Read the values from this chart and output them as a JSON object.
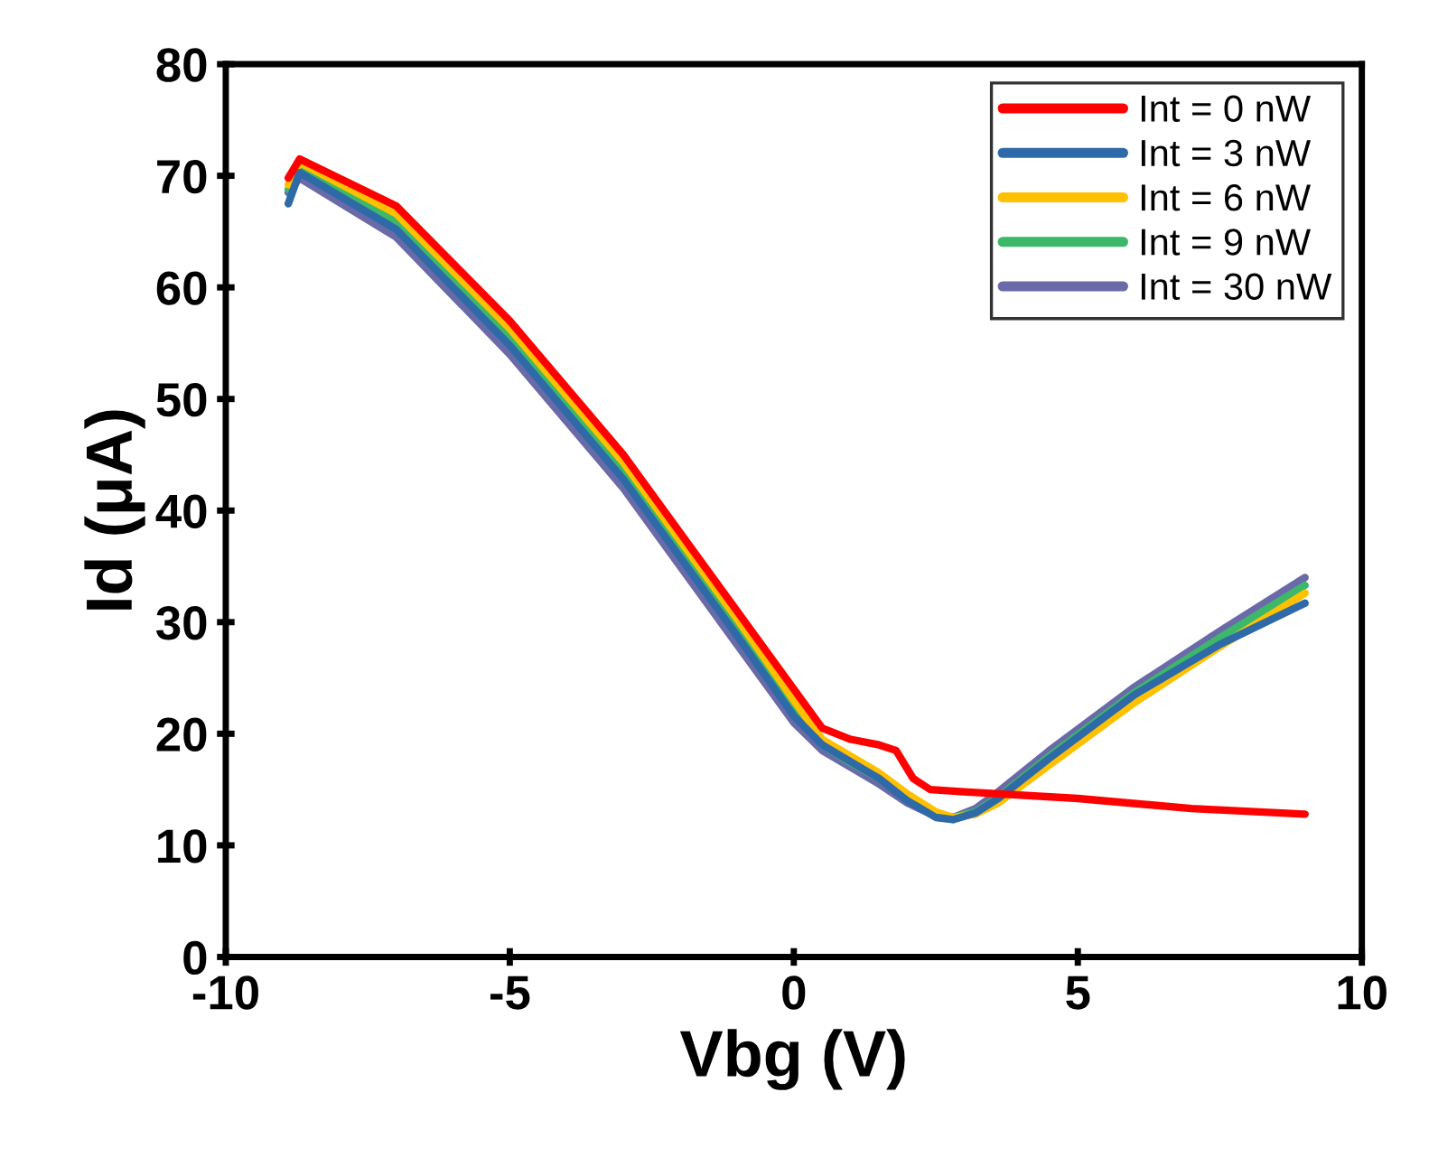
{
  "chart_data": {
    "type": "line",
    "xlabel": "Vbg (V)",
    "ylabel": "Id (μA)",
    "xlim": [
      -10,
      10
    ],
    "xticks": [
      -10,
      -5,
      0,
      5,
      10
    ],
    "ylim": [
      0,
      80
    ],
    "yticks": [
      0,
      10,
      20,
      30,
      40,
      50,
      60,
      70,
      80
    ],
    "grid": false,
    "legend": "top right",
    "marker": "none",
    "line_style": "solid",
    "series": [
      {
        "name": "Int = 0 nW",
        "color": "#ff0000",
        "x": [
          -8.9,
          -8.7,
          -7,
          -5,
          -3,
          -1,
          0,
          0.5,
          1,
          1.5,
          1.8,
          2.1,
          2.4,
          3,
          5,
          7,
          9
        ],
        "values": [
          69.8,
          71.5,
          67.3,
          57,
          45,
          31,
          24,
          20.5,
          19.5,
          19,
          18.5,
          16,
          15,
          14.8,
          14.2,
          13.3,
          12.8
        ]
      },
      {
        "name": "Int = 3 nW",
        "color": "#2e6aa8",
        "x": [
          -8.9,
          -8.7,
          -7,
          -5,
          -3,
          -1,
          0,
          0.5,
          1,
          1.5,
          2,
          2.5,
          2.8,
          3.2,
          3.6,
          4.5,
          6,
          7.5,
          9
        ],
        "values": [
          67.5,
          70.3,
          65.2,
          54.8,
          42.8,
          28.8,
          21.6,
          19,
          17.5,
          16,
          14,
          12.5,
          12.3,
          12.9,
          14.2,
          17.8,
          23.5,
          28,
          31.7
        ]
      },
      {
        "name": "Int = 6 nW",
        "color": "#ffc000",
        "x": [
          -8.9,
          -8.7,
          -7,
          -5,
          -3,
          -1,
          0,
          0.5,
          1,
          1.5,
          2,
          2.5,
          2.8,
          3.2,
          3.6,
          4.5,
          6,
          7.5,
          9
        ],
        "values": [
          69.2,
          71.2,
          66.6,
          56.3,
          44.3,
          30.3,
          23,
          19.5,
          18,
          16.5,
          14.6,
          13,
          12.5,
          12.8,
          13.8,
          17.2,
          22.8,
          27.8,
          32.6
        ]
      },
      {
        "name": "Int = 9 nW",
        "color": "#3cb868",
        "x": [
          -8.9,
          -8.7,
          -7,
          -5,
          -3,
          -1,
          0,
          0.5,
          1,
          1.5,
          2,
          2.5,
          2.8,
          3.2,
          3.6,
          4.5,
          6,
          7.5,
          9
        ],
        "values": [
          68.8,
          70.8,
          65.9,
          55.6,
          43.6,
          29.6,
          22.3,
          19,
          17.4,
          16,
          14.2,
          12.8,
          12.5,
          13,
          14.3,
          18,
          23.7,
          28.6,
          33.3
        ]
      },
      {
        "name": "Int = 30 nW",
        "color": "#6a6aa8",
        "x": [
          -8.9,
          -8.7,
          -7,
          -5,
          -3,
          -1,
          0,
          0.5,
          1,
          1.5,
          2,
          2.5,
          2.8,
          3.2,
          3.6,
          4.5,
          6,
          7.5,
          9
        ],
        "values": [
          68.5,
          69.8,
          64.5,
          54,
          42,
          28,
          21,
          18.5,
          17,
          15.5,
          13.8,
          12.6,
          12.5,
          13.3,
          14.8,
          18.5,
          24.2,
          29.2,
          34
        ]
      }
    ]
  }
}
